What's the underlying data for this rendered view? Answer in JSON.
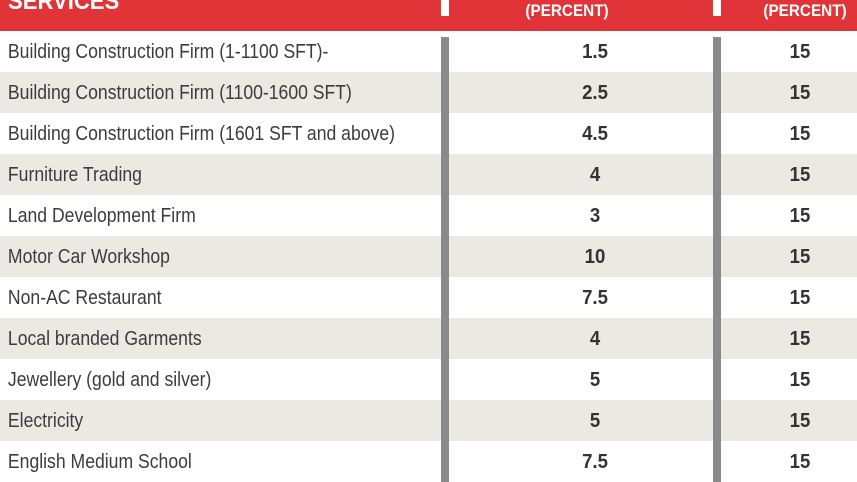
{
  "table": {
    "header": {
      "services_label": "SERVICES",
      "percent_col_1": "(PERCENT)",
      "percent_col_2": "(PERCENT)"
    },
    "rows": [
      {
        "service": "Building Construction Firm (1-1100 SFT)-",
        "fee1": "1.5",
        "fee2": "15"
      },
      {
        "service": "Building Construction Firm (1100-1600 SFT)",
        "fee1": "2.5",
        "fee2": "15"
      },
      {
        "service": "Building Construction Firm (1601 SFT and above)",
        "fee1": "4.5",
        "fee2": "15"
      },
      {
        "service": "Furniture Trading",
        "fee1": "4",
        "fee2": "15"
      },
      {
        "service": "Land Development Firm",
        "fee1": "3",
        "fee2": "15"
      },
      {
        "service": "Motor Car Workshop",
        "fee1": "10",
        "fee2": "15"
      },
      {
        "service": "Non-AC Restaurant",
        "fee1": "7.5",
        "fee2": "15"
      },
      {
        "service": "Local branded Garments",
        "fee1": "4",
        "fee2": "15"
      },
      {
        "service": "Jewellery (gold and silver)",
        "fee1": "5",
        "fee2": "15"
      },
      {
        "service": "Electricity",
        "fee1": "5",
        "fee2": "15"
      },
      {
        "service": "English Medium School",
        "fee1": "7.5",
        "fee2": "15"
      }
    ]
  },
  "colors": {
    "header_red": "#e13438",
    "row_alt_beige": "#eae9e2",
    "divider_gray": "#8a8a8a",
    "header_text": "#ffffff",
    "body_text": "#3d3c3c"
  },
  "chart_data": {
    "type": "table",
    "columns": [
      "SERVICES",
      "(PERCENT)",
      "(PERCENT)"
    ],
    "rows": [
      [
        "Building Construction Firm (1-1100 SFT)-",
        1.5,
        15
      ],
      [
        "Building Construction Firm (1100-1600 SFT)",
        2.5,
        15
      ],
      [
        "Building Construction Firm (1601 SFT and above)",
        4.5,
        15
      ],
      [
        "Furniture Trading",
        4,
        15
      ],
      [
        "Land Development Firm",
        3,
        15
      ],
      [
        "Motor Car Workshop",
        10,
        15
      ],
      [
        "Non-AC Restaurant",
        7.5,
        15
      ],
      [
        "Local branded Garments",
        4,
        15
      ],
      [
        "Jewellery (gold and silver)",
        5,
        15
      ],
      [
        "Electricity",
        5,
        15
      ],
      [
        "English Medium School",
        7.5,
        15
      ]
    ]
  }
}
